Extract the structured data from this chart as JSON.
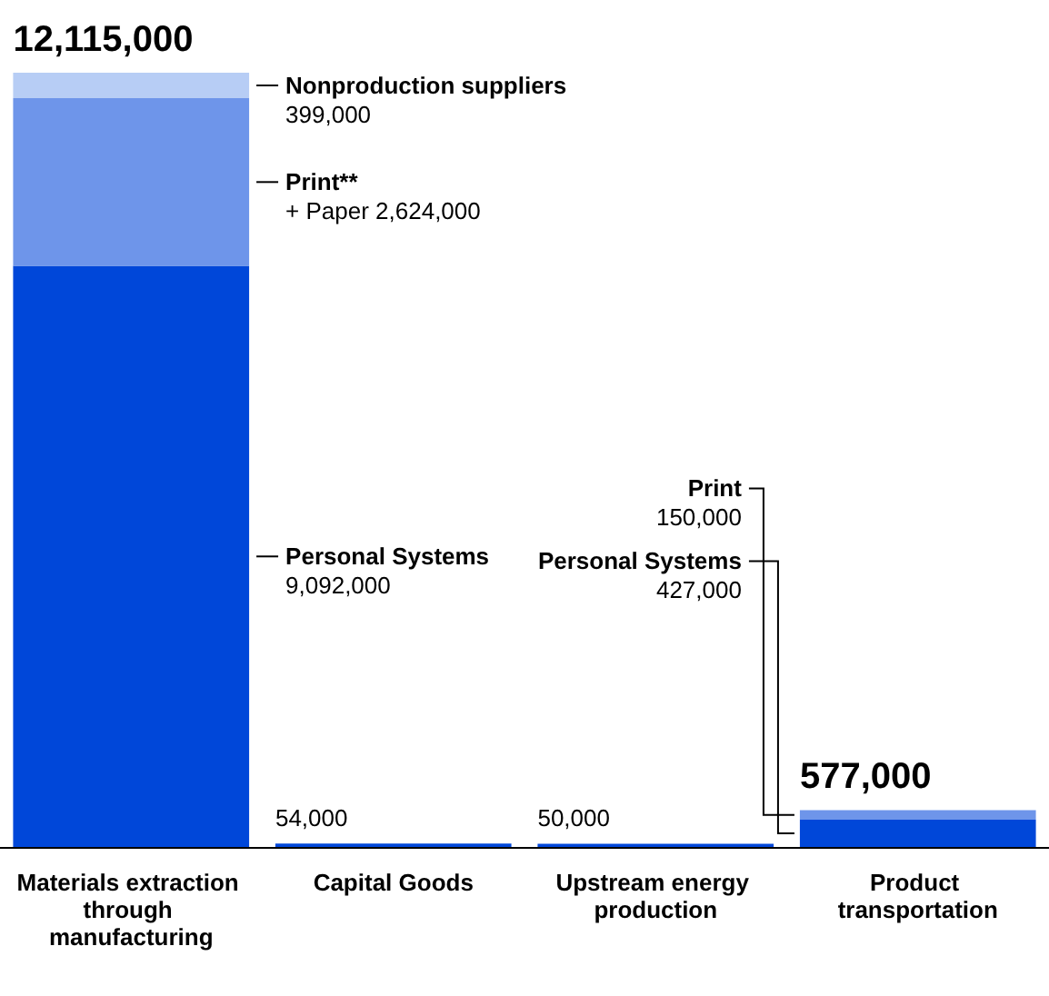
{
  "chart_data": {
    "type": "bar",
    "stacked": true,
    "tick_labels": "x",
    "categories": [
      "Materials extraction through manufacturing",
      "Capital Goods",
      "Upstream energy production",
      "Product transportation"
    ],
    "series": [
      {
        "color": "#0047d9",
        "values": [
          9092000,
          54000,
          50000,
          427000
        ],
        "value_labels": [
          "Personal Systems\n9,092,000",
          "54,000",
          "50,000",
          "Personal Systems\n427,000"
        ]
      },
      {
        "color": "#6e95ea",
        "values": [
          2624000,
          null,
          null,
          150000
        ],
        "value_labels": [
          "Print**\n+ Paper 2,624,000",
          null,
          null,
          "Print\n150,000"
        ]
      },
      {
        "color": "#b7cdf5",
        "values": [
          399000,
          null,
          null,
          null
        ],
        "value_labels": [
          "Nonproduction suppliers\n399,000",
          null,
          null,
          null
        ]
      }
    ],
    "totals": [
      "12,115,000",
      null,
      null,
      "577,000"
    ]
  }
}
